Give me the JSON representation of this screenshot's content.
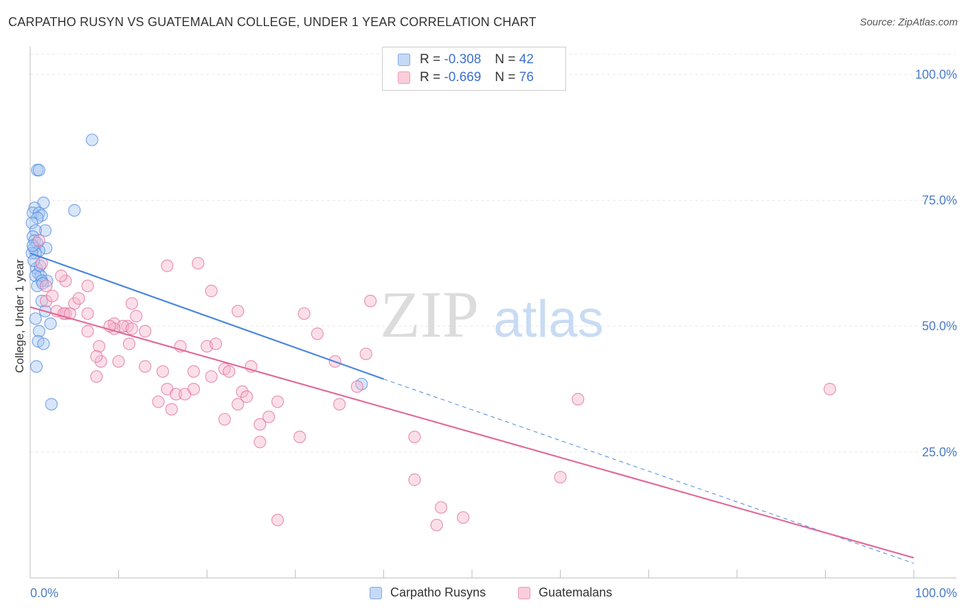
{
  "header": {
    "title": "CARPATHO RUSYN VS GUATEMALAN COLLEGE, UNDER 1 YEAR CORRELATION CHART",
    "source": "Source: ZipAtlas.com"
  },
  "watermark": {
    "part1": "ZIP",
    "part2": "atlas"
  },
  "legend": {
    "rows": [
      {
        "r_label": "R = ",
        "r_value": "-0.308",
        "n_label": "N = ",
        "n_value": "42",
        "color": "#a9c8f5"
      },
      {
        "r_label": "R = ",
        "r_value": "-0.669",
        "n_label": "N = ",
        "n_value": "76",
        "color": "#f6b8cb"
      }
    ]
  },
  "chart_data": {
    "type": "scatter",
    "title": "CARPATHO RUSYN VS GUATEMALAN COLLEGE, UNDER 1 YEAR CORRELATION CHART",
    "xlabel": "",
    "ylabel": "College, Under 1 year",
    "xlim": [
      0,
      100
    ],
    "ylim": [
      0,
      100
    ],
    "x_tick_labels": [
      "0.0%",
      "100.0%"
    ],
    "y_ticks": [
      25,
      50,
      75,
      100
    ],
    "y_tick_labels": [
      "25.0%",
      "50.0%",
      "75.0%",
      "100.0%"
    ],
    "grid": true,
    "legend_position": "top-center",
    "series": [
      {
        "name": "Carpatho Rusyns",
        "color": "#4a86e0",
        "fill": "#a9c8f5",
        "trend": {
          "x": [
            0,
            40
          ],
          "y": [
            64.5,
            39.5
          ],
          "dashed_extension": {
            "x": [
              40,
              100
            ],
            "y": [
              39.5,
              2.9
            ]
          }
        },
        "points": [
          [
            7,
            87
          ],
          [
            0.8,
            81
          ],
          [
            1,
            81
          ],
          [
            1.5,
            74.5
          ],
          [
            5,
            73
          ],
          [
            0.5,
            73.5
          ],
          [
            0.3,
            72.5
          ],
          [
            1,
            72.5
          ],
          [
            1.3,
            72
          ],
          [
            0.8,
            71.5
          ],
          [
            0.2,
            70.5
          ],
          [
            1.7,
            69
          ],
          [
            0.6,
            69
          ],
          [
            0.3,
            67.8
          ],
          [
            0.5,
            67
          ],
          [
            0.8,
            66.5
          ],
          [
            1.8,
            65.5
          ],
          [
            0.4,
            65.5
          ],
          [
            1,
            65
          ],
          [
            0.6,
            64.5
          ],
          [
            0.2,
            64.5
          ],
          [
            0.7,
            61.5
          ],
          [
            0.9,
            60.5
          ],
          [
            1.2,
            60
          ],
          [
            0.6,
            60
          ],
          [
            1.9,
            59
          ],
          [
            1.3,
            59
          ],
          [
            0.8,
            58
          ],
          [
            1.3,
            55
          ],
          [
            1.7,
            53
          ],
          [
            0.6,
            51.5
          ],
          [
            2.3,
            50.5
          ],
          [
            1,
            49
          ],
          [
            0.9,
            47
          ],
          [
            1.5,
            46.5
          ],
          [
            0.7,
            42
          ],
          [
            2.4,
            34.5
          ],
          [
            37.5,
            38.5
          ],
          [
            0.3,
            66
          ],
          [
            1.1,
            62
          ],
          [
            0.4,
            63
          ],
          [
            1.4,
            58.5
          ]
        ]
      },
      {
        "name": "Guatemalans",
        "color": "#e06a98",
        "fill": "#f6b8cb",
        "trend": {
          "x": [
            0,
            100
          ],
          "y": [
            53.8,
            4.0
          ]
        },
        "points": [
          [
            1,
            67
          ],
          [
            1.3,
            62.5
          ],
          [
            15.5,
            62
          ],
          [
            19,
            62.5
          ],
          [
            6.5,
            58
          ],
          [
            1.8,
            58
          ],
          [
            4,
            59
          ],
          [
            3,
            53
          ],
          [
            1.8,
            55
          ],
          [
            5,
            54.5
          ],
          [
            4,
            52.5
          ],
          [
            6.5,
            52.5
          ],
          [
            11.5,
            54.5
          ],
          [
            5.5,
            55.5
          ],
          [
            3.8,
            52.5
          ],
          [
            4.5,
            52.5
          ],
          [
            9.5,
            50.5
          ],
          [
            12,
            52
          ],
          [
            11,
            50
          ],
          [
            10.5,
            50
          ],
          [
            9.5,
            49.5
          ],
          [
            11.5,
            49.5
          ],
          [
            6.5,
            49
          ],
          [
            7.8,
            46
          ],
          [
            11.2,
            46.5
          ],
          [
            9,
            50
          ],
          [
            8,
            43
          ],
          [
            7.5,
            44
          ],
          [
            10,
            43
          ],
          [
            13,
            42
          ],
          [
            7.5,
            40
          ],
          [
            15,
            41
          ],
          [
            20,
            46
          ],
          [
            21,
            46.5
          ],
          [
            17,
            46
          ],
          [
            22,
            41.5
          ],
          [
            25,
            42
          ],
          [
            20.5,
            40
          ],
          [
            18.5,
            41
          ],
          [
            22.5,
            41
          ],
          [
            24,
            37
          ],
          [
            15.5,
            37.5
          ],
          [
            14.5,
            35
          ],
          [
            16.5,
            36.5
          ],
          [
            18.5,
            37.5
          ],
          [
            17.5,
            36.5
          ],
          [
            24.5,
            36
          ],
          [
            23.5,
            34.5
          ],
          [
            16,
            33.5
          ],
          [
            22,
            31.5
          ],
          [
            28,
            35
          ],
          [
            27,
            32
          ],
          [
            26,
            30.5
          ],
          [
            30.5,
            28
          ],
          [
            26,
            27
          ],
          [
            23.5,
            53
          ],
          [
            31,
            52.5
          ],
          [
            32.5,
            48.5
          ],
          [
            38,
            44.5
          ],
          [
            38.5,
            55
          ],
          [
            34.5,
            43
          ],
          [
            37,
            38
          ],
          [
            35,
            34.5
          ],
          [
            43.5,
            28
          ],
          [
            43.5,
            19.5
          ],
          [
            46.5,
            14
          ],
          [
            49,
            12
          ],
          [
            28,
            11.5
          ],
          [
            46,
            10.5
          ],
          [
            60,
            20
          ],
          [
            62,
            35.5
          ],
          [
            90.5,
            37.5
          ],
          [
            13,
            49
          ],
          [
            3.5,
            60
          ],
          [
            2.5,
            56
          ],
          [
            20.5,
            57
          ]
        ]
      }
    ]
  },
  "bottom_legend": {
    "items": [
      {
        "label": "Carpatho Rusyns",
        "color": "#a9c8f5"
      },
      {
        "label": "Guatemalans",
        "color": "#f6b8cb"
      }
    ]
  }
}
